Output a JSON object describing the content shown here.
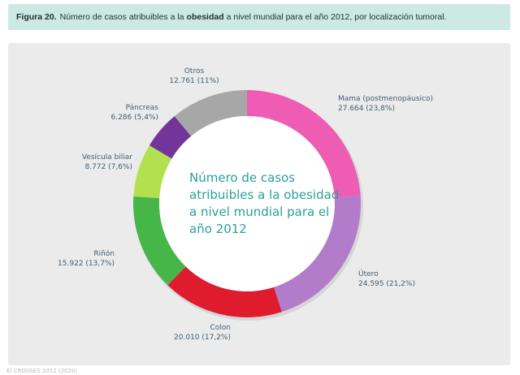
{
  "figure": {
    "label": "Figura 20.",
    "text_before": "Número de casos atribuibles a la",
    "keyword": "obesidad",
    "text_after": "a nivel mundial para el año 2012, por localización tumoral."
  },
  "chart_data": {
    "type": "pie",
    "variant": "donut",
    "title": "Número de casos atribuibles a la obesidad a nivel mundial para el año 2012",
    "title_lines": [
      "Número de casos",
      "atribuibles a la obesidad",
      "a nivel mundial para el",
      "año 2012"
    ],
    "slices": [
      {
        "name": "Mama (postmenopáusico)",
        "value": 27664,
        "value_label": "27.664 (23,8%)",
        "percent": 23.8,
        "color": "#ee5cb3"
      },
      {
        "name": "Útero",
        "value": 24595,
        "value_label": "24.595 (21,2%)",
        "percent": 21.2,
        "color": "#b27ccb"
      },
      {
        "name": "Colon",
        "value": 20010,
        "value_label": "20.010 (17,2%)",
        "percent": 17.2,
        "color": "#de1c2e"
      },
      {
        "name": "Riñón",
        "value": 15922,
        "value_label": "15.922 (13,7%)",
        "percent": 13.7,
        "color": "#46b649"
      },
      {
        "name": "Vesícula biliar",
        "value": 8772,
        "value_label": "8.772 (7,6%)",
        "percent": 7.6,
        "color": "#b3e04f"
      },
      {
        "name": "Páncreas",
        "value": 6286,
        "value_label": "6.286 (5,4%)",
        "percent": 5.4,
        "color": "#73359a"
      },
      {
        "name": "Otros",
        "value": 12761,
        "value_label": "12.761 (11%)",
        "percent": 11.0,
        "color": "#a7a7a7"
      }
    ]
  },
  "source": "El CROSSES 2012 (2020)"
}
